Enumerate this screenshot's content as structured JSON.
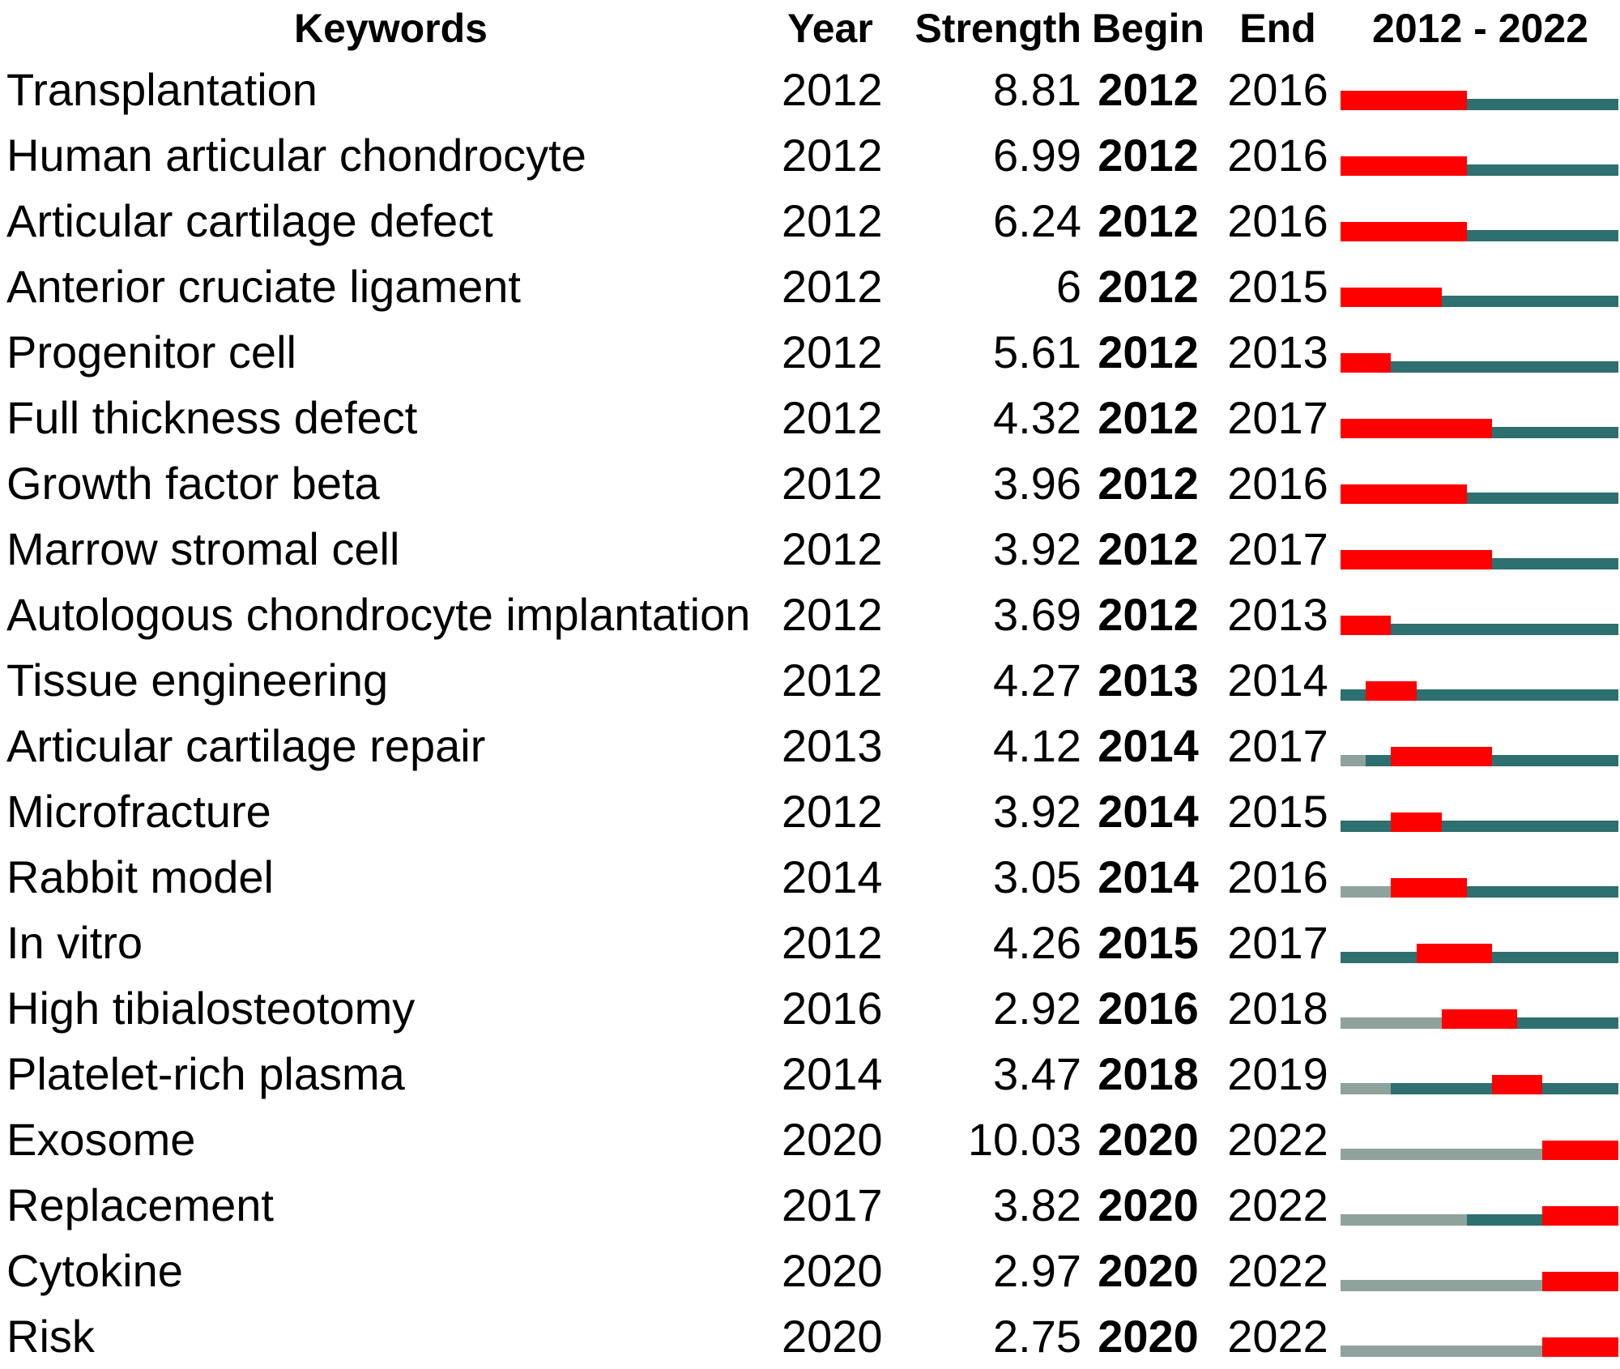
{
  "chart_data": {
    "type": "table",
    "description": "Keywords with strongest citation bursts: table with burst timeline bars",
    "columns": [
      "Keywords",
      "Year",
      "Strength",
      "Begin",
      "End"
    ],
    "timeline": {
      "start": 2012,
      "end": 2022,
      "label": "2012 - 2022"
    },
    "colors": {
      "burst": "#fe0000",
      "active": "#2e6f6f",
      "inactive": "#90a29e",
      "text": "#000000"
    },
    "legend_semantics": {
      "gray_segment": "years before keyword first appeared",
      "teal_segment": "years keyword active without burst",
      "red_segment": "burst period (Begin to End)"
    },
    "rows": [
      {
        "keyword": "Transplantation",
        "year": 2012,
        "strength": "8.81",
        "begin": 2012,
        "end": 2016
      },
      {
        "keyword": "Human articular chondrocyte",
        "year": 2012,
        "strength": "6.99",
        "begin": 2012,
        "end": 2016
      },
      {
        "keyword": "Articular cartilage defect",
        "year": 2012,
        "strength": "6.24",
        "begin": 2012,
        "end": 2016
      },
      {
        "keyword": "Anterior cruciate ligament",
        "year": 2012,
        "strength": "6",
        "begin": 2012,
        "end": 2015
      },
      {
        "keyword": "Progenitor cell",
        "year": 2012,
        "strength": "5.61",
        "begin": 2012,
        "end": 2013
      },
      {
        "keyword": "Full thickness defect",
        "year": 2012,
        "strength": "4.32",
        "begin": 2012,
        "end": 2017
      },
      {
        "keyword": "Growth factor beta",
        "year": 2012,
        "strength": "3.96",
        "begin": 2012,
        "end": 2016
      },
      {
        "keyword": "Marrow stromal cell",
        "year": 2012,
        "strength": "3.92",
        "begin": 2012,
        "end": 2017
      },
      {
        "keyword": "Autologous chondrocyte implantation",
        "year": 2012,
        "strength": "3.69",
        "begin": 2012,
        "end": 2013
      },
      {
        "keyword": "Tissue engineering",
        "year": 2012,
        "strength": "4.27",
        "begin": 2013,
        "end": 2014
      },
      {
        "keyword": "Articular cartilage repair",
        "year": 2013,
        "strength": "4.12",
        "begin": 2014,
        "end": 2017
      },
      {
        "keyword": "Microfracture",
        "year": 2012,
        "strength": "3.92",
        "begin": 2014,
        "end": 2015
      },
      {
        "keyword": "Rabbit model",
        "year": 2014,
        "strength": "3.05",
        "begin": 2014,
        "end": 2016
      },
      {
        "keyword": "In vitro",
        "year": 2012,
        "strength": "4.26",
        "begin": 2015,
        "end": 2017
      },
      {
        "keyword": "High tibialosteotomy",
        "year": 2016,
        "strength": "2.92",
        "begin": 2016,
        "end": 2018
      },
      {
        "keyword": "Platelet-rich plasma",
        "year": 2014,
        "strength": "3.47",
        "begin": 2018,
        "end": 2019
      },
      {
        "keyword": "Exosome",
        "year": 2020,
        "strength": "10.03",
        "begin": 2020,
        "end": 2022
      },
      {
        "keyword": "Replacement",
        "year": 2017,
        "strength": "3.82",
        "begin": 2020,
        "end": 2022
      },
      {
        "keyword": "Cytokine",
        "year": 2020,
        "strength": "2.97",
        "begin": 2020,
        "end": 2022
      },
      {
        "keyword": "Risk",
        "year": 2020,
        "strength": "2.75",
        "begin": 2020,
        "end": 2022
      }
    ]
  }
}
